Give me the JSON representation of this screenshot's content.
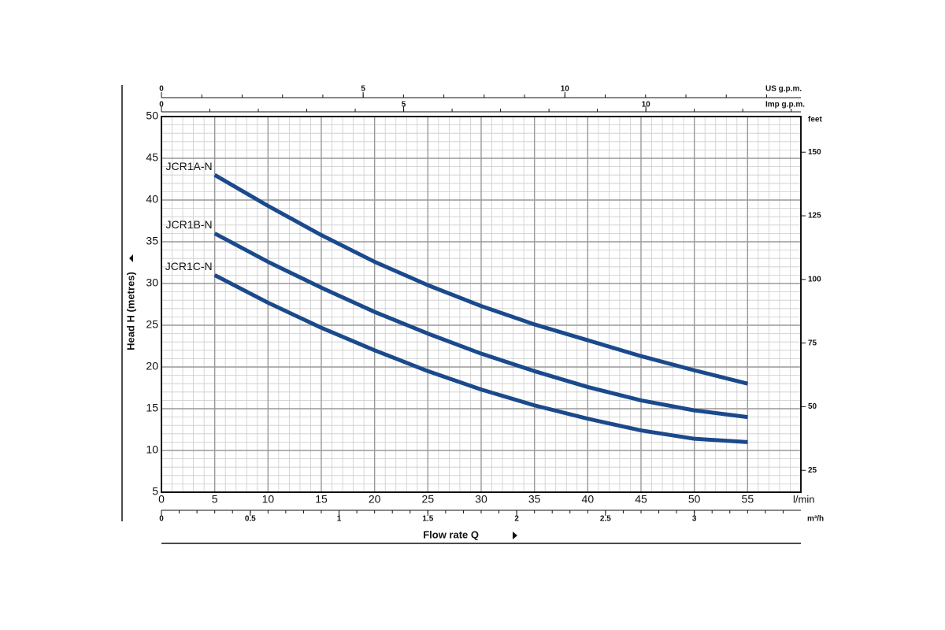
{
  "chart_data": {
    "type": "line",
    "x_title": "Flow rate Q",
    "x_unit": "l/min",
    "y_title": "Head H (metres)",
    "y2_unit": "feet",
    "x": [
      5,
      10,
      15,
      20,
      25,
      30,
      35,
      40,
      45,
      50,
      55
    ],
    "series": [
      {
        "name": "JCR1A-N",
        "color": "#1b4a8c",
        "values": [
          43,
          39.3,
          35.8,
          32.6,
          29.8,
          27.3,
          25.1,
          23.2,
          21.3,
          19.6,
          18
        ]
      },
      {
        "name": "JCR1B-N",
        "color": "#1b4a8c",
        "values": [
          36,
          32.6,
          29.5,
          26.6,
          24,
          21.6,
          19.5,
          17.6,
          16,
          14.8,
          14
        ]
      },
      {
        "name": "JCR1C-N",
        "color": "#1b4a8c",
        "values": [
          31,
          27.7,
          24.7,
          22,
          19.5,
          17.3,
          15.4,
          13.8,
          12.4,
          11.4,
          11
        ]
      }
    ],
    "xlim": [
      0,
      60
    ],
    "xticks": [
      0,
      5,
      10,
      15,
      20,
      25,
      30,
      35,
      40,
      45,
      50,
      55
    ],
    "ylim": [
      5,
      50
    ],
    "yticks": [
      5,
      10,
      15,
      20,
      25,
      30,
      35,
      40,
      45,
      50
    ],
    "y2lim": [
      16.4,
      164
    ],
    "y2ticks": [
      25,
      50,
      75,
      100,
      125,
      150
    ],
    "secondary_x_axes": [
      {
        "unit": "US g.p.m.",
        "position": "top",
        "lim": [
          0,
          15.85
        ],
        "ticks": [
          0,
          5,
          10
        ]
      },
      {
        "unit": "Imp g.p.m.",
        "position": "top",
        "lim": [
          0,
          13.2
        ],
        "ticks": [
          0,
          5,
          10
        ]
      },
      {
        "unit": "m³/h",
        "position": "bottom",
        "lim": [
          0,
          3.6
        ],
        "ticks": [
          0,
          0.5,
          1,
          1.5,
          2,
          2.5,
          3
        ]
      }
    ],
    "grid": true
  }
}
